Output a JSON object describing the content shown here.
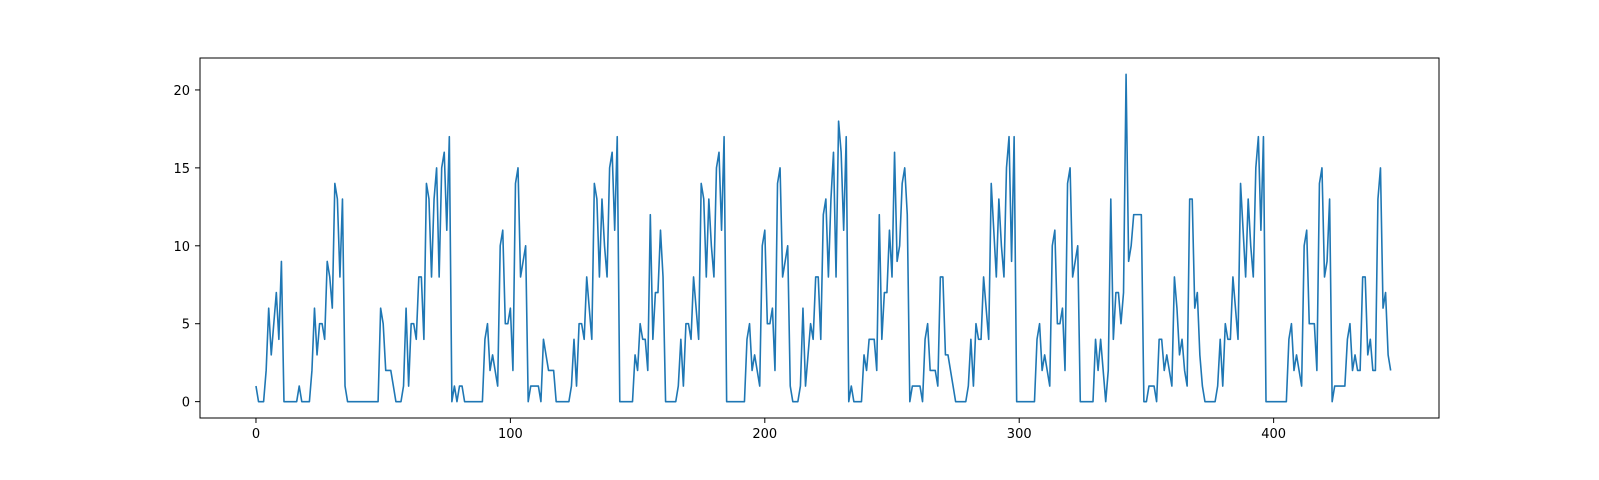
{
  "chart_data": {
    "type": "line",
    "title": "",
    "xlabel": "",
    "ylabel": "",
    "xlim": [
      -22,
      465
    ],
    "ylim": [
      -1.05,
      22.05
    ],
    "xticks": [
      0,
      100,
      200,
      300,
      400
    ],
    "yticks": [
      0,
      5,
      10,
      15,
      20
    ],
    "grid": false,
    "legend": "none",
    "series": [
      {
        "color": "#1f77b4",
        "x_start": 0,
        "x_step": 1,
        "values": [
          1,
          0,
          0,
          0,
          2,
          6,
          3,
          5,
          7,
          4,
          9,
          0,
          0,
          0,
          0,
          0,
          0,
          1,
          0,
          0,
          0,
          0,
          2,
          6,
          3,
          5,
          5,
          4,
          9,
          8,
          6,
          14,
          13,
          8,
          13,
          1,
          0,
          0,
          0,
          0,
          0,
          0,
          0,
          0,
          0,
          0,
          0,
          0,
          0,
          6,
          5,
          2,
          2,
          2,
          1,
          0,
          0,
          0,
          1,
          6,
          1,
          5,
          5,
          4,
          8,
          8,
          4,
          14,
          13,
          8,
          13,
          15,
          8,
          15,
          16,
          11,
          17,
          0,
          1,
          0,
          1,
          1,
          0,
          0,
          0,
          0,
          0,
          0,
          0,
          0,
          4,
          5,
          2,
          3,
          2,
          1,
          10,
          11,
          5,
          5,
          6,
          2,
          14,
          15,
          8,
          9,
          10,
          0,
          1,
          1,
          1,
          1,
          0,
          4,
          3,
          2,
          2,
          2,
          0,
          0,
          0,
          0,
          0,
          0,
          1,
          4,
          1,
          5,
          5,
          4,
          8,
          6,
          4,
          14,
          13,
          8,
          13,
          10,
          8,
          15,
          16,
          11,
          17,
          0,
          0,
          0,
          0,
          0,
          0,
          3,
          2,
          5,
          4,
          4,
          2,
          12,
          4,
          7,
          7,
          11,
          8,
          0,
          0,
          0,
          0,
          0,
          1,
          4,
          1,
          5,
          5,
          4,
          8,
          6,
          4,
          14,
          13,
          8,
          13,
          10,
          8,
          15,
          16,
          11,
          17,
          0,
          0,
          0,
          0,
          0,
          0,
          0,
          0,
          4,
          5,
          2,
          3,
          2,
          1,
          10,
          11,
          5,
          5,
          6,
          2,
          14,
          15,
          8,
          9,
          10,
          1,
          0,
          0,
          0,
          1,
          6,
          1,
          3,
          5,
          4,
          8,
          8,
          4,
          12,
          13,
          8,
          13,
          16,
          8,
          18,
          16,
          11,
          17,
          0,
          1,
          0,
          0,
          0,
          0,
          3,
          2,
          4,
          4,
          4,
          2,
          12,
          4,
          7,
          7,
          11,
          8,
          16,
          9,
          10,
          14,
          15,
          12,
          0,
          1,
          1,
          1,
          1,
          0,
          4,
          5,
          2,
          2,
          2,
          1,
          8,
          8,
          3,
          3,
          2,
          1,
          0,
          0,
          0,
          0,
          0,
          1,
          4,
          1,
          5,
          4,
          4,
          8,
          6,
          4,
          14,
          11,
          8,
          13,
          10,
          8,
          15,
          17,
          9,
          17,
          0,
          0,
          0,
          0,
          0,
          0,
          0,
          0,
          4,
          5,
          2,
          3,
          2,
          1,
          10,
          11,
          5,
          5,
          6,
          2,
          14,
          15,
          8,
          9,
          10,
          0,
          0,
          0,
          0,
          0,
          0,
          4,
          2,
          4,
          2,
          0,
          2,
          13,
          4,
          7,
          7,
          5,
          7,
          21,
          9,
          10,
          12,
          12,
          12,
          12,
          0,
          0,
          1,
          1,
          1,
          0,
          4,
          4,
          2,
          3,
          2,
          1,
          8,
          6,
          3,
          4,
          2,
          1,
          13,
          13,
          6,
          7,
          3,
          1,
          0,
          0,
          0,
          0,
          0,
          1,
          4,
          1,
          5,
          4,
          4,
          8,
          6,
          4,
          14,
          11,
          8,
          13,
          10,
          8,
          15,
          17,
          11,
          17,
          0,
          0,
          0,
          0,
          0,
          0,
          0,
          0,
          0,
          4,
          5,
          2,
          3,
          2,
          1,
          10,
          11,
          5,
          5,
          5,
          2,
          14,
          15,
          8,
          9,
          13,
          0,
          1,
          1,
          1,
          1,
          1,
          4,
          5,
          2,
          3,
          2,
          2,
          8,
          8,
          3,
          4,
          2,
          2,
          13,
          15,
          6,
          7,
          3,
          2
        ]
      }
    ]
  }
}
